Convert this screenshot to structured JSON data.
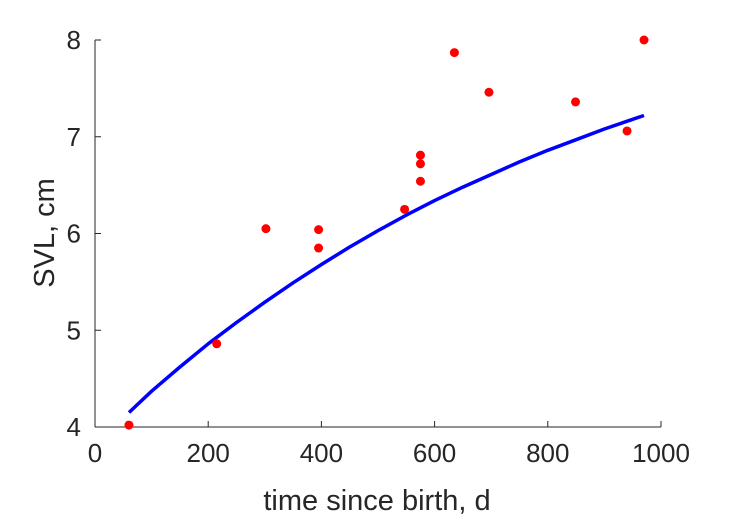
{
  "chart_data": {
    "type": "scatter",
    "title": "",
    "xlabel": "time since birth, d",
    "ylabel": "SVL, cm",
    "xlim": [
      0,
      1000
    ],
    "ylim": [
      4,
      8
    ],
    "xticks": [
      0,
      200,
      400,
      600,
      800,
      1000
    ],
    "yticks": [
      4,
      5,
      6,
      7,
      8
    ],
    "grid": false,
    "series": [
      {
        "kind": "points",
        "color": "#ff0000",
        "points": [
          [
            60,
            4.02
          ],
          [
            215,
            4.86
          ],
          [
            302,
            6.05
          ],
          [
            395,
            6.04
          ],
          [
            395,
            5.85
          ],
          [
            547,
            6.25
          ],
          [
            575,
            6.81
          ],
          [
            575,
            6.72
          ],
          [
            575,
            6.54
          ],
          [
            635,
            7.87
          ],
          [
            696,
            7.46
          ],
          [
            849,
            7.36
          ],
          [
            940,
            7.06
          ],
          [
            970,
            8.0
          ]
        ]
      },
      {
        "kind": "fit-line",
        "color": "#0000ff",
        "x": [
          60,
          100,
          150,
          200,
          250,
          300,
          350,
          400,
          450,
          500,
          550,
          600,
          650,
          700,
          750,
          800,
          850,
          900,
          950,
          970
        ],
        "y": [
          4.15,
          4.37,
          4.62,
          4.86,
          5.08,
          5.29,
          5.49,
          5.68,
          5.86,
          6.03,
          6.19,
          6.34,
          6.48,
          6.61,
          6.74,
          6.86,
          6.97,
          7.08,
          7.18,
          7.22
        ]
      }
    ]
  }
}
